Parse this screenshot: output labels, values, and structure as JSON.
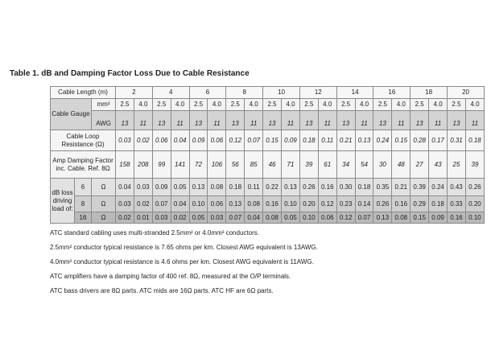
{
  "title": "Table 1.  dB and Damping Factor Loss Due to Cable Resistance",
  "table": {
    "length_label": "Cable Length (m)",
    "lengths": [
      "2",
      "4",
      "6",
      "8",
      "10",
      "12",
      "14",
      "16",
      "18",
      "20"
    ],
    "gauge_label": "Cable Gauge",
    "mm_label": "mm²",
    "awg_label": "AWG",
    "mm": [
      "2.5",
      "4.0"
    ],
    "awg": [
      "13",
      "11"
    ],
    "loop_label": "Cable Loop Resistance (Ω)",
    "loop": [
      "0.03",
      "0.02",
      "0.06",
      "0.04",
      "0.09",
      "0.06",
      "0.12",
      "0.07",
      "0.15",
      "0.09",
      "0.18",
      "0.11",
      "0.21",
      "0.13",
      "0.24",
      "0.15",
      "0.28",
      "0.17",
      "0.31",
      "0.18"
    ],
    "damp_label": "Amp Damping Factor inc. Cable. Ref. 8Ω",
    "damp": [
      "158",
      "208",
      "99",
      "141",
      "72",
      "106",
      "56",
      "85",
      "46",
      "71",
      "39",
      "61",
      "34",
      "54",
      "30",
      "48",
      "27",
      "43",
      "25",
      "39"
    ],
    "db_label": "dB loss driving load of:",
    "ohm": "Ω",
    "db_rows": [
      {
        "load": "6",
        "values": [
          "0.04",
          "0.03",
          "0.09",
          "0.05",
          "0.13",
          "0.08",
          "0.18",
          "0.11",
          "0.22",
          "0.13",
          "0.26",
          "0.16",
          "0.30",
          "0.18",
          "0.35",
          "0.21",
          "0.39",
          "0.24",
          "0.43",
          "0.26"
        ]
      },
      {
        "load": "8",
        "values": [
          "0.03",
          "0.02",
          "0.07",
          "0.04",
          "0.10",
          "0.06",
          "0.13",
          "0.08",
          "0.16",
          "0.10",
          "0.20",
          "0.12",
          "0.23",
          "0.14",
          "0.26",
          "0.16",
          "0.29",
          "0.18",
          "0.33",
          "0.20"
        ]
      },
      {
        "load": "16",
        "values": [
          "0.02",
          "0.01",
          "0.03",
          "0.02",
          "0.05",
          "0.03",
          "0.07",
          "0.04",
          "0.08",
          "0.05",
          "0.10",
          "0.06",
          "0.12",
          "0.07",
          "0.13",
          "0.08",
          "0.15",
          "0.09",
          "0.16",
          "0.10"
        ]
      }
    ]
  },
  "notes": [
    "ATC standard cabling uses multi-stranded 2.5mm² or 4.0mm² conductors.",
    "2.5mm² conductor typical resistance is 7.65 ohms per km.  Closest AWG equivalent is 13AWG.",
    "4.0mm² conductor typical resistance is 4.6 ohms per km.  Closest AWG equivalent is 11AWG.",
    "ATC amplifiers have a damping factor of 400 ref. 8Ω, measured at the O/P terminals.",
    "ATC bass drivers are 8Ω parts.  ATC mids are 16Ω parts.  ATC HF are 6Ω parts."
  ]
}
